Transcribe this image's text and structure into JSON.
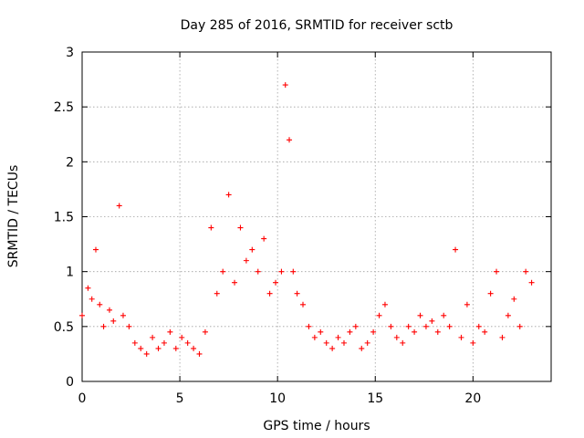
{
  "chart_data": {
    "type": "scatter",
    "title": "Day 285 of 2016, SRMTID for receiver sctb",
    "xlabel": "GPS time / hours",
    "ylabel": "SRMTID / TECUs",
    "xlim": [
      0,
      24
    ],
    "ylim": [
      0,
      3
    ],
    "xticks": [
      "0",
      "5",
      "10",
      "15",
      "20"
    ],
    "yticks": [
      "0",
      "0.5",
      "1",
      "1.5",
      "2",
      "2.5",
      "3"
    ],
    "grid": true,
    "marker": "+",
    "color": "#ff0000",
    "series": [
      {
        "name": "SRMTID",
        "x": [
          0.0,
          0.3,
          0.5,
          0.7,
          0.9,
          1.1,
          1.4,
          1.6,
          1.9,
          2.1,
          2.4,
          2.7,
          3.0,
          3.3,
          3.6,
          3.9,
          4.2,
          4.5,
          4.8,
          5.1,
          5.4,
          5.7,
          6.0,
          6.3,
          6.6,
          6.9,
          7.2,
          7.5,
          7.8,
          8.1,
          8.4,
          8.7,
          9.0,
          9.3,
          9.6,
          9.9,
          10.2,
          10.4,
          10.6,
          10.8,
          11.0,
          11.3,
          11.6,
          11.9,
          12.2,
          12.5,
          12.8,
          13.1,
          13.4,
          13.7,
          14.0,
          14.3,
          14.6,
          14.9,
          15.2,
          15.5,
          15.8,
          16.1,
          16.4,
          16.7,
          17.0,
          17.3,
          17.6,
          17.9,
          18.2,
          18.5,
          18.8,
          19.1,
          19.4,
          19.7,
          20.0,
          20.3,
          20.6,
          20.9,
          21.2,
          21.5,
          21.8,
          22.1,
          22.4,
          22.7,
          23.0
        ],
        "y": [
          0.6,
          0.85,
          0.75,
          1.2,
          0.7,
          0.5,
          0.65,
          0.55,
          1.6,
          0.6,
          0.5,
          0.35,
          0.3,
          0.25,
          0.4,
          0.3,
          0.35,
          0.45,
          0.3,
          0.4,
          0.35,
          0.3,
          0.25,
          0.45,
          1.4,
          0.8,
          1.0,
          1.7,
          0.9,
          1.4,
          1.1,
          1.2,
          1.0,
          1.3,
          0.8,
          0.9,
          1.0,
          2.7,
          2.2,
          1.0,
          0.8,
          0.7,
          0.5,
          0.4,
          0.45,
          0.35,
          0.3,
          0.4,
          0.35,
          0.45,
          0.5,
          0.3,
          0.35,
          0.45,
          0.6,
          0.7,
          0.5,
          0.4,
          0.35,
          0.5,
          0.45,
          0.6,
          0.5,
          0.55,
          0.45,
          0.6,
          0.5,
          1.2,
          0.4,
          0.7,
          0.35,
          0.5,
          0.45,
          0.8,
          1.0,
          0.4,
          0.6,
          0.75,
          0.5,
          1.0,
          0.9
        ]
      }
    ]
  }
}
